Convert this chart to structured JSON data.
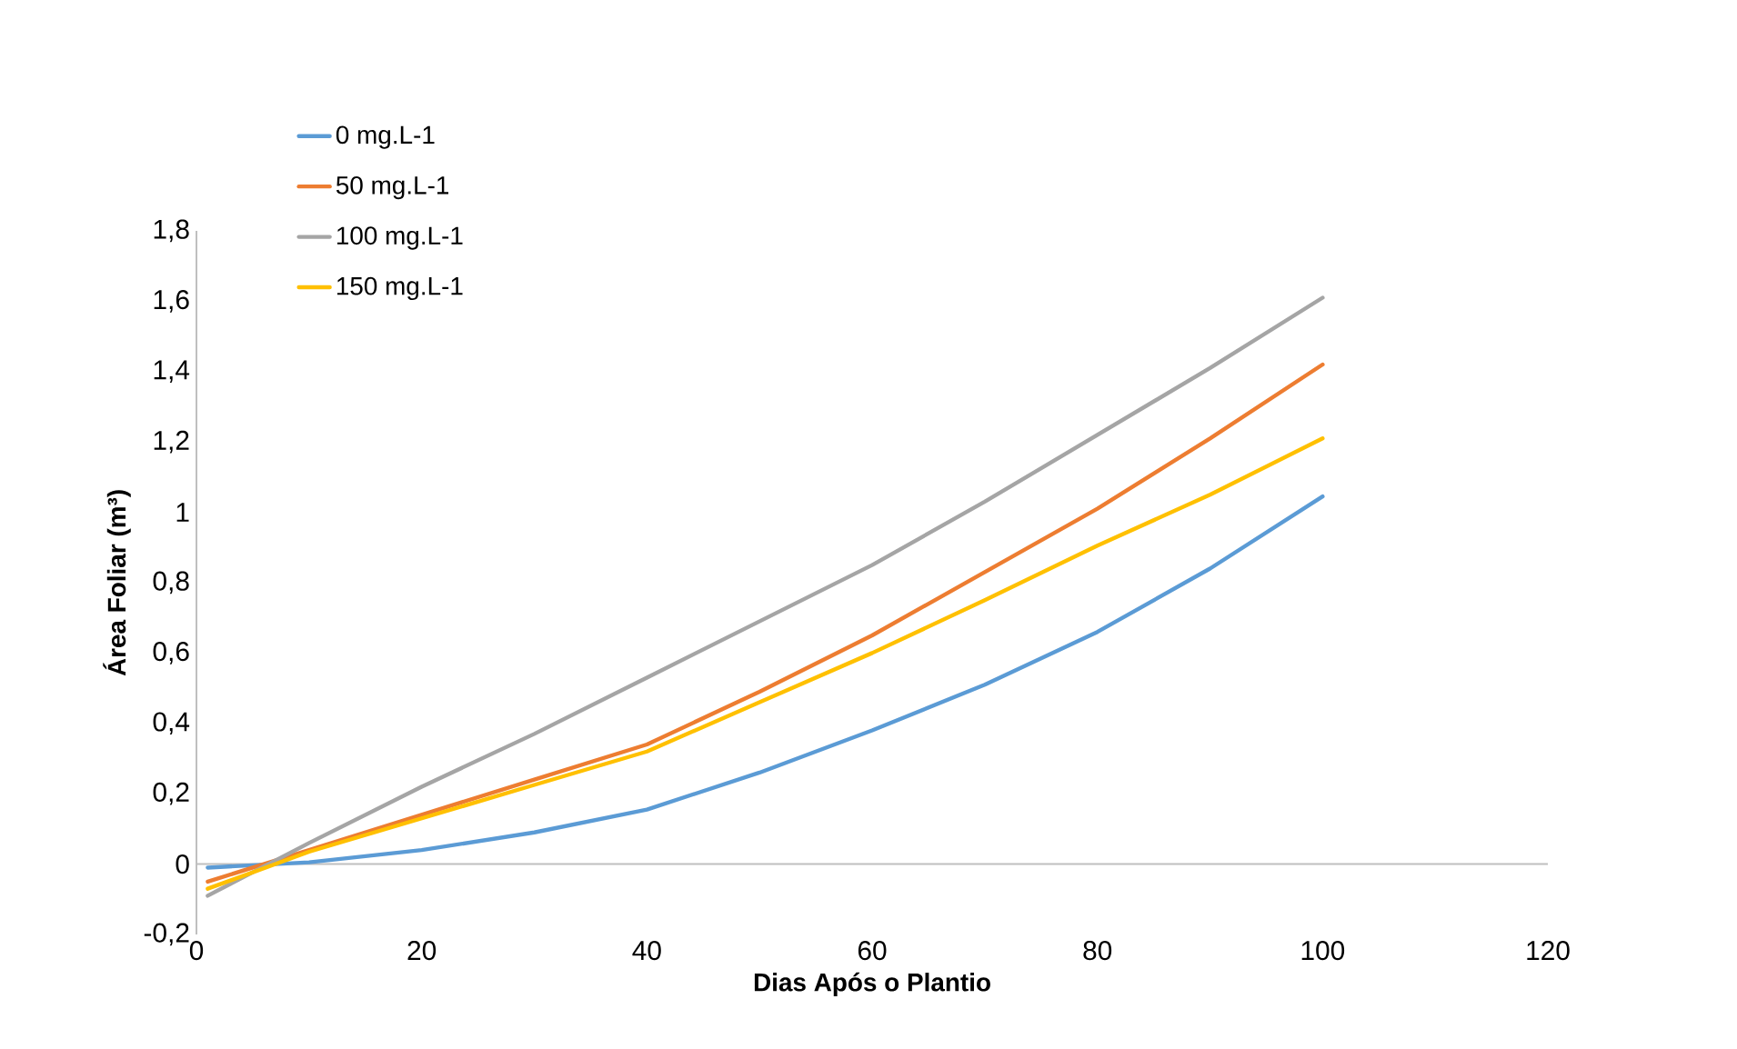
{
  "chart_data": {
    "type": "line",
    "xlabel": "Dias Após o Plantio",
    "ylabel": "Área Foliar (m³)",
    "xlim": [
      0,
      120
    ],
    "xticks": [
      0,
      20,
      40,
      60,
      80,
      100,
      120
    ],
    "ylim": [
      -0.2,
      1.8
    ],
    "yticks": [
      {
        "value": -0.2,
        "label": "-0,2"
      },
      {
        "value": 0,
        "label": "0"
      },
      {
        "value": 0.2,
        "label": "0,2"
      },
      {
        "value": 0.4,
        "label": "0,4"
      },
      {
        "value": 0.6,
        "label": "0,6"
      },
      {
        "value": 0.8,
        "label": "0,8"
      },
      {
        "value": 1,
        "label": "1"
      },
      {
        "value": 1.2,
        "label": "1,2"
      },
      {
        "value": 1.4,
        "label": "1,4"
      },
      {
        "value": 1.6,
        "label": "1,6"
      },
      {
        "value": 1.8,
        "label": "1,8"
      }
    ],
    "x": [
      1,
      10,
      20,
      30,
      40,
      50,
      60,
      70,
      80,
      90,
      100
    ],
    "ref_lines": [
      {
        "axis": "y",
        "value": 0,
        "color": "#bfbfbf"
      }
    ],
    "legend": "top left",
    "grid": false,
    "marker": "none",
    "line_style": "solid",
    "series": [
      {
        "name": "0 mg.L-1",
        "color": "#5b9bd5",
        "values": [
          -0.01,
          0.005,
          0.04,
          0.09,
          0.155,
          0.26,
          0.38,
          0.51,
          0.66,
          0.84,
          1.045
        ]
      },
      {
        "name": "50 mg.L-1",
        "color": "#ed7d31",
        "values": [
          -0.05,
          0.04,
          0.14,
          0.24,
          0.34,
          0.49,
          0.65,
          0.83,
          1.01,
          1.21,
          1.42
        ]
      },
      {
        "name": "100 mg.L-1",
        "color": "#a5a5a5",
        "values": [
          -0.09,
          0.06,
          0.22,
          0.37,
          0.53,
          0.69,
          0.85,
          1.03,
          1.22,
          1.41,
          1.61
        ]
      },
      {
        "name": "150 mg.L-1",
        "color": "#ffc000",
        "values": [
          -0.07,
          0.035,
          0.13,
          0.225,
          0.32,
          0.46,
          0.6,
          0.75,
          0.905,
          1.05,
          1.21
        ]
      }
    ]
  }
}
